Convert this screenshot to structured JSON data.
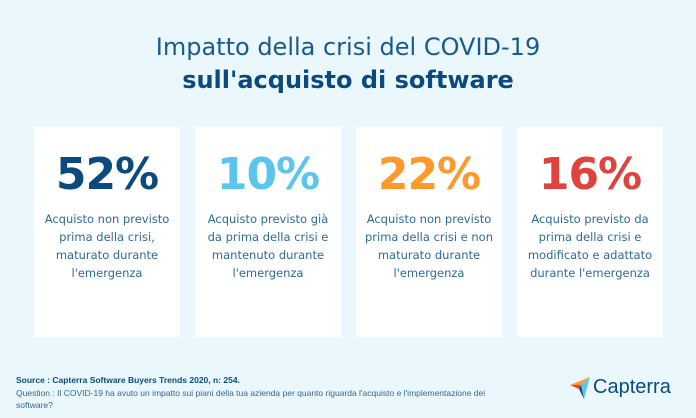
{
  "title_line1": "Impatto della crisi del COVID-19",
  "title_line2": "sull'acquisto di software",
  "stats": [
    {
      "value": "52%",
      "color": "#0b4a7e",
      "text": "Acquisto non previsto prima della crisi, maturato durante l'emergenza"
    },
    {
      "value": "10%",
      "color": "#5bc5ee",
      "text": "Acquisto previsto già da prima della crisi e mantenuto durante l'emergenza"
    },
    {
      "value": "22%",
      "color": "#ff9a2a",
      "text": "Acquisto non previsto prima della crisi e non maturato durante l'emergenza"
    },
    {
      "value": "16%",
      "color": "#e0433d",
      "text": "Acquisto previsto da prima della crisi e modificato e adattato durante l'emergenza"
    }
  ],
  "source": "Source : Capterra Software Buyers Trends 2020, n: 254.",
  "question": "Question : Il COVID-19 ha avuto un impatto sui piani della tua azienda per quanto riguarda l'acquisto e l'implementazione dei software?",
  "logo": "Capterra"
}
